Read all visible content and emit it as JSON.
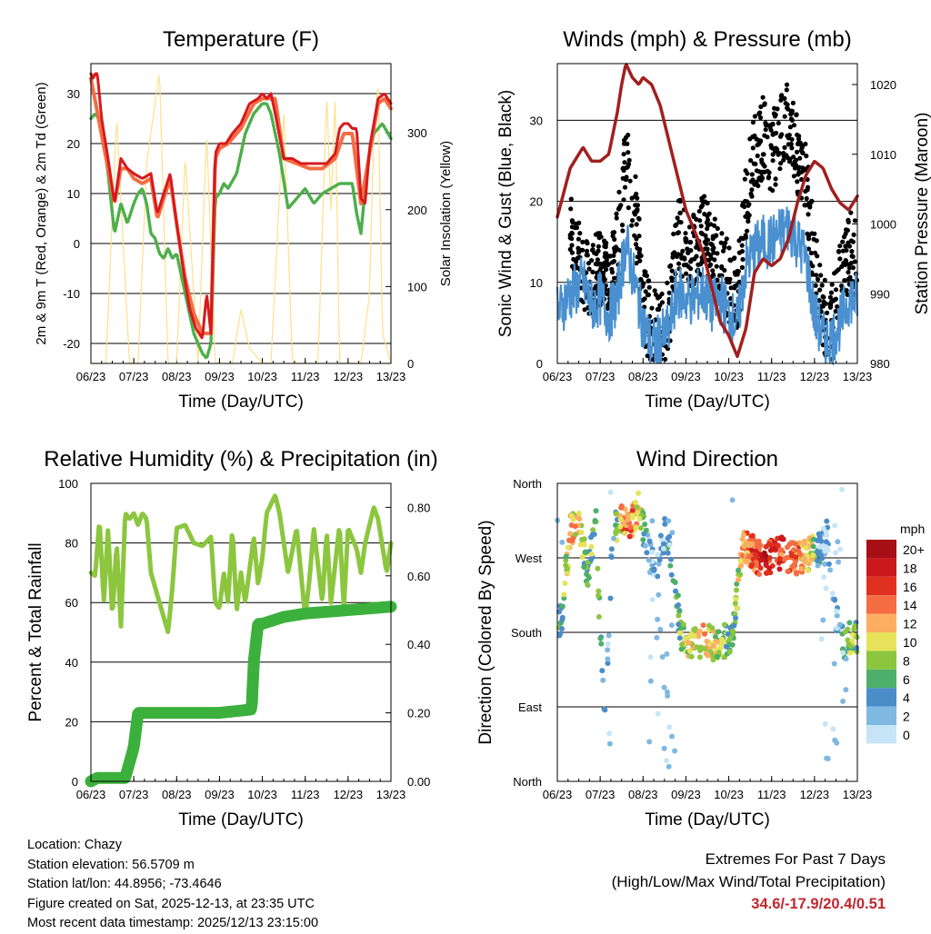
{
  "chart_data": [
    {
      "type": "line",
      "title": "Temperature (F)",
      "xlabel": "Time (Day/UTC)",
      "ylabel": "2m & 9m T (Red, Orange) & 2m Td (Green)",
      "y2label": "Solar Insolation (Yellow)",
      "x_ticks": [
        "06/23",
        "07/23",
        "08/23",
        "09/23",
        "10/23",
        "11/23",
        "12/23",
        "13/23"
      ],
      "xlim": [
        0,
        7
      ],
      "ylim": [
        -24,
        36
      ],
      "y_ticks": [
        -20,
        -10,
        0,
        10,
        20,
        30
      ],
      "y2lim": [
        0,
        390
      ],
      "y2_ticks": [
        0,
        100,
        200,
        300
      ],
      "series": [
        {
          "name": "2m T",
          "color": "#d7191c",
          "x": [
            0,
            0.05,
            0.1,
            0.15,
            0.25,
            0.4,
            0.55,
            0.7,
            0.85,
            1.0,
            1.2,
            1.4,
            1.55,
            1.7,
            1.85,
            2.0,
            2.15,
            2.3,
            2.45,
            2.6,
            2.7,
            2.8,
            2.9,
            3.0,
            3.15,
            3.3,
            3.5,
            3.7,
            3.9,
            4.0,
            4.1,
            4.2,
            4.3,
            4.5,
            4.7,
            4.9,
            5.1,
            5.3,
            5.5,
            5.7,
            5.8,
            5.9,
            6.0,
            6.1,
            6.2,
            6.3,
            6.4,
            6.5,
            6.7,
            6.85,
            7.0
          ],
          "values": [
            34,
            33,
            34,
            34,
            25,
            17,
            8,
            17,
            15,
            14,
            13,
            14,
            6,
            10,
            14,
            4,
            -5,
            -13,
            -17,
            -19,
            -10,
            -18,
            18,
            20,
            20,
            22,
            24,
            28,
            29,
            30,
            29,
            30,
            26,
            17,
            17,
            16,
            16,
            16,
            16,
            18,
            23,
            24,
            24,
            23,
            23,
            9,
            8,
            19,
            29,
            30,
            28
          ]
        },
        {
          "name": "9m T",
          "color": "#f46d43",
          "x": [
            0,
            0.2,
            0.4,
            0.55,
            0.7,
            0.85,
            1.0,
            1.2,
            1.4,
            1.55,
            1.7,
            1.85,
            2.0,
            2.2,
            2.4,
            2.6,
            2.8,
            2.9,
            3.0,
            3.2,
            3.5,
            3.8,
            4.0,
            4.3,
            4.5,
            4.8,
            5.1,
            5.4,
            5.7,
            5.9,
            6.1,
            6.3,
            6.5,
            6.7,
            6.85,
            7.0
          ],
          "values": [
            33,
            24,
            15,
            8,
            15,
            15,
            13,
            12,
            13,
            5,
            9,
            13,
            4,
            -7,
            -14,
            -18,
            -18,
            17,
            19,
            20,
            23,
            28,
            29,
            29,
            17,
            16,
            15,
            15,
            17,
            22,
            22,
            8,
            18,
            28,
            29,
            27
          ]
        },
        {
          "name": "2m Td",
          "color": "#4daf4a",
          "x": [
            0,
            0.1,
            0.25,
            0.4,
            0.55,
            0.7,
            0.85,
            1.0,
            1.1,
            1.2,
            1.3,
            1.4,
            1.5,
            1.6,
            1.7,
            1.8,
            1.9,
            2.0,
            2.2,
            2.4,
            2.6,
            2.7,
            2.8,
            2.9,
            3.0,
            3.1,
            3.2,
            3.4,
            3.6,
            3.8,
            4.0,
            4.1,
            4.2,
            4.4,
            4.6,
            4.8,
            5.0,
            5.2,
            5.4,
            5.6,
            5.8,
            6.0,
            6.1,
            6.2,
            6.3,
            6.4,
            6.5,
            6.6,
            6.8,
            7.0
          ],
          "values": [
            25,
            26,
            24,
            14,
            2,
            8,
            4,
            8,
            10,
            11,
            8,
            2,
            1,
            -2,
            -3,
            -1,
            -3,
            -2,
            -10,
            -18,
            -22,
            -23,
            -20,
            9,
            10,
            12,
            11,
            14,
            22,
            26,
            28,
            28,
            26,
            18,
            7,
            9,
            11,
            8,
            10,
            11,
            12,
            12,
            12,
            6,
            2,
            11,
            18,
            22,
            24,
            21
          ]
        },
        {
          "name": "Solar Insolation",
          "color": "#fee08b",
          "axis": "right",
          "x": [
            0,
            0.35,
            0.6,
            0.9,
            1.1,
            1.3,
            1.6,
            1.8,
            2.0,
            2.2,
            2.5,
            2.7,
            2.9,
            3.3,
            3.5,
            3.7,
            4.0,
            4.2,
            4.5,
            4.7,
            5.0,
            5.3,
            5.5,
            5.6,
            5.7,
            5.8,
            6.0,
            6.3,
            6.5,
            6.6,
            6.7,
            6.8,
            7.0
          ],
          "values": [
            0,
            0,
            320,
            0,
            0,
            260,
            380,
            0,
            0,
            270,
            0,
            300,
            0,
            0,
            70,
            20,
            0,
            0,
            330,
            0,
            0,
            0,
            350,
            200,
            350,
            0,
            0,
            0,
            90,
            300,
            360,
            40,
            0
          ]
        }
      ]
    },
    {
      "type": "scatter",
      "title": "Winds (mph) & Pressure (mb)",
      "xlabel": "Time (Day/UTC)",
      "ylabel": "Sonic Wind & Gust (Blue, Black)",
      "y2label": "Station Pressure (Maroon)",
      "x_ticks": [
        "06/23",
        "07/23",
        "08/23",
        "09/23",
        "10/23",
        "11/23",
        "12/23",
        "13/23"
      ],
      "xlim": [
        0,
        7
      ],
      "ylim": [
        0,
        37
      ],
      "y_ticks": [
        0,
        10,
        20,
        30
      ],
      "y2lim": [
        980,
        1023
      ],
      "y2_ticks": [
        980,
        990,
        1000,
        1010,
        1020
      ],
      "series": [
        {
          "name": "Sonic Wind",
          "color": "#4a90d0",
          "x": [
            0,
            0.2,
            0.4,
            0.6,
            0.8,
            1.0,
            1.2,
            1.4,
            1.6,
            1.8,
            2.0,
            2.2,
            2.4,
            2.6,
            2.8,
            3.0,
            3.2,
            3.4,
            3.6,
            3.8,
            4.0,
            4.2,
            4.4,
            4.6,
            4.8,
            5.0,
            5.2,
            5.4,
            5.6,
            5.8,
            6.0,
            6.2,
            6.4,
            6.6,
            6.8,
            7.0
          ],
          "values": [
            6,
            8,
            9,
            10,
            7,
            8,
            6,
            8,
            15,
            10,
            5,
            2,
            3,
            4,
            9,
            8,
            8,
            9,
            7,
            8,
            6,
            5,
            12,
            14,
            15,
            15,
            16,
            17,
            15,
            13,
            6,
            3,
            3,
            5,
            8,
            8
          ]
        },
        {
          "name": "Gust",
          "color": "#000000",
          "x": [
            0,
            0.2,
            0.4,
            0.6,
            0.8,
            1.0,
            1.2,
            1.4,
            1.6,
            1.8,
            2.0,
            2.2,
            2.4,
            2.6,
            2.8,
            3.0,
            3.2,
            3.4,
            3.6,
            3.8,
            4.0,
            4.2,
            4.4,
            4.6,
            4.8,
            5.0,
            5.2,
            5.4,
            5.6,
            5.8,
            6.0,
            6.2,
            6.4,
            6.6,
            6.8,
            7.0
          ],
          "values": [
            12,
            18,
            14,
            12,
            10,
            12,
            10,
            14,
            25,
            20,
            8,
            4,
            4,
            6,
            16,
            15,
            14,
            16,
            14,
            12,
            10,
            8,
            20,
            26,
            28,
            26,
            28,
            30,
            26,
            22,
            12,
            6,
            5,
            10,
            14,
            13
          ]
        },
        {
          "name": "Station Pressure",
          "color": "#a21f1f",
          "axis": "right",
          "x": [
            0,
            0.3,
            0.6,
            0.8,
            1.0,
            1.2,
            1.4,
            1.5,
            1.6,
            1.75,
            1.9,
            2.0,
            2.2,
            2.4,
            2.6,
            2.8,
            3.0,
            3.2,
            3.4,
            3.6,
            3.8,
            4.0,
            4.2,
            4.4,
            4.5,
            4.6,
            4.8,
            5.0,
            5.2,
            5.4,
            5.6,
            5.8,
            6.0,
            6.2,
            6.4,
            6.6,
            6.8,
            7.0
          ],
          "values": [
            1001,
            1008,
            1011,
            1009,
            1009,
            1010,
            1016,
            1020,
            1023,
            1021,
            1020,
            1021,
            1020,
            1017,
            1012,
            1007,
            1002,
            999,
            996,
            991,
            986,
            984,
            981,
            985,
            989,
            993,
            995,
            994,
            995,
            998,
            1003,
            1007,
            1009,
            1008,
            1005,
            1003,
            1002,
            1004
          ]
        }
      ]
    },
    {
      "type": "line",
      "title": "Relative Humidity (%) & Precipitation (in)",
      "xlabel": "Time (Day/UTC)",
      "ylabel": "Percent & Total Rainfall",
      "x_ticks": [
        "06/23",
        "07/23",
        "08/23",
        "09/23",
        "10/23",
        "11/23",
        "12/23",
        "13/23"
      ],
      "xlim": [
        0,
        7
      ],
      "ylim": [
        0,
        100
      ],
      "y_ticks": [
        0,
        20,
        40,
        60,
        80,
        100
      ],
      "y2lim": [
        0,
        0.87
      ],
      "y2_ticks": [
        "0.00",
        "0.20",
        "0.40",
        "0.60",
        "0.80"
      ],
      "series": [
        {
          "name": "Relative Humidity",
          "color": "#8cc63f",
          "x": [
            0,
            0.1,
            0.2,
            0.3,
            0.4,
            0.5,
            0.6,
            0.7,
            0.8,
            0.9,
            1.0,
            1.1,
            1.2,
            1.3,
            1.4,
            1.5,
            1.6,
            1.7,
            1.8,
            1.9,
            2.0,
            2.2,
            2.4,
            2.6,
            2.8,
            2.9,
            3.0,
            3.1,
            3.2,
            3.3,
            3.4,
            3.5,
            3.6,
            3.8,
            3.9,
            4.0,
            4.1,
            4.3,
            4.4,
            4.6,
            4.8,
            5.0,
            5.1,
            5.2,
            5.4,
            5.5,
            5.6,
            5.8,
            5.9,
            6.0,
            6.2,
            6.3,
            6.4,
            6.6,
            6.7,
            6.9,
            7.0
          ],
          "values": [
            70,
            69,
            88,
            60,
            85,
            55,
            80,
            52,
            90,
            88,
            90,
            86,
            90,
            88,
            70,
            65,
            60,
            55,
            50,
            65,
            85,
            86,
            80,
            79,
            82,
            60,
            58,
            70,
            60,
            85,
            57,
            70,
            60,
            82,
            66,
            75,
            90,
            96,
            90,
            70,
            85,
            55,
            68,
            85,
            60,
            84,
            60,
            86,
            58,
            85,
            78,
            70,
            80,
            92,
            88,
            70,
            80
          ]
        },
        {
          "name": "Total Precipitation",
          "color": "#3cb03c",
          "axis": "right",
          "x": [
            0,
            0.15,
            0.8,
            1.0,
            1.1,
            2.0,
            3.0,
            3.75,
            3.8,
            3.9,
            4.0,
            4.5,
            5.0,
            6.0,
            7.0
          ],
          "values": [
            0,
            0.01,
            0.01,
            0.1,
            0.2,
            0.2,
            0.2,
            0.21,
            0.35,
            0.46,
            0.46,
            0.48,
            0.49,
            0.5,
            0.51
          ]
        }
      ]
    },
    {
      "type": "scatter",
      "title": "Wind Direction",
      "xlabel": "Time (Day/UTC)",
      "ylabel": "Direction (Colored By Speed)",
      "x_ticks": [
        "06/23",
        "07/23",
        "08/23",
        "09/23",
        "10/23",
        "11/23",
        "12/23",
        "13/23"
      ],
      "xlim": [
        0,
        7
      ],
      "ylim": [
        0,
        360
      ],
      "y_ticks": [
        "North",
        "East",
        "South",
        "West",
        "North"
      ],
      "legend_title": "mph",
      "legend_labels": [
        "20+",
        "18",
        "16",
        "14",
        "12",
        "10",
        "8",
        "6",
        "4",
        "2",
        "0"
      ],
      "legend_colors": [
        "#a50f15",
        "#cb181d",
        "#e0301e",
        "#f46d43",
        "#fdae61",
        "#e6e35a",
        "#8cc63f",
        "#4daf6a",
        "#4a8dc8",
        "#7fb8e0",
        "#c6e5f7"
      ],
      "x": [
        0,
        0.1,
        0.3,
        0.5,
        0.7,
        0.9,
        1.1,
        1.3,
        1.5,
        1.7,
        1.9,
        2.1,
        2.3,
        2.5,
        2.7,
        2.9,
        3.1,
        3.3,
        3.5,
        3.7,
        3.9,
        4.1,
        4.3,
        4.5,
        4.7,
        4.9,
        5.1,
        5.3,
        5.5,
        5.7,
        5.9,
        6.1,
        6.3,
        6.5,
        6.7,
        6.9,
        7.0
      ],
      "values": [
        180,
        200,
        300,
        320,
        250,
        310,
        60,
        300,
        320,
        310,
        330,
        280,
        250,
        300,
        260,
        170,
        170,
        170,
        170,
        165,
        170,
        175,
        285,
        280,
        270,
        270,
        275,
        275,
        270,
        270,
        275,
        280,
        300,
        200,
        160,
        180,
        170
      ],
      "speeds": [
        4,
        5,
        12,
        10,
        6,
        8,
        3,
        2,
        12,
        14,
        10,
        3,
        2,
        2,
        3,
        8,
        9,
        10,
        11,
        9,
        7,
        5,
        12,
        14,
        16,
        18,
        15,
        16,
        14,
        12,
        10,
        3,
        2,
        2,
        4,
        8,
        6
      ]
    }
  ],
  "info": {
    "location": "Location: Chazy",
    "elevation": "Station elevation: 56.5709 m",
    "latlon": "Station lat/lon: 44.8956; -73.4646",
    "created": "Figure created on Sat, 2025-12-13, at 23:35 UTC",
    "recent": "Most recent data timestamp: 2025/12/13 23:15:00"
  },
  "extremes": {
    "title": "Extremes For Past 7 Days",
    "subtitle": "(High/Low/Max Wind/Total Precipitation)",
    "values": "34.6/-17.9/20.4/0.51"
  }
}
